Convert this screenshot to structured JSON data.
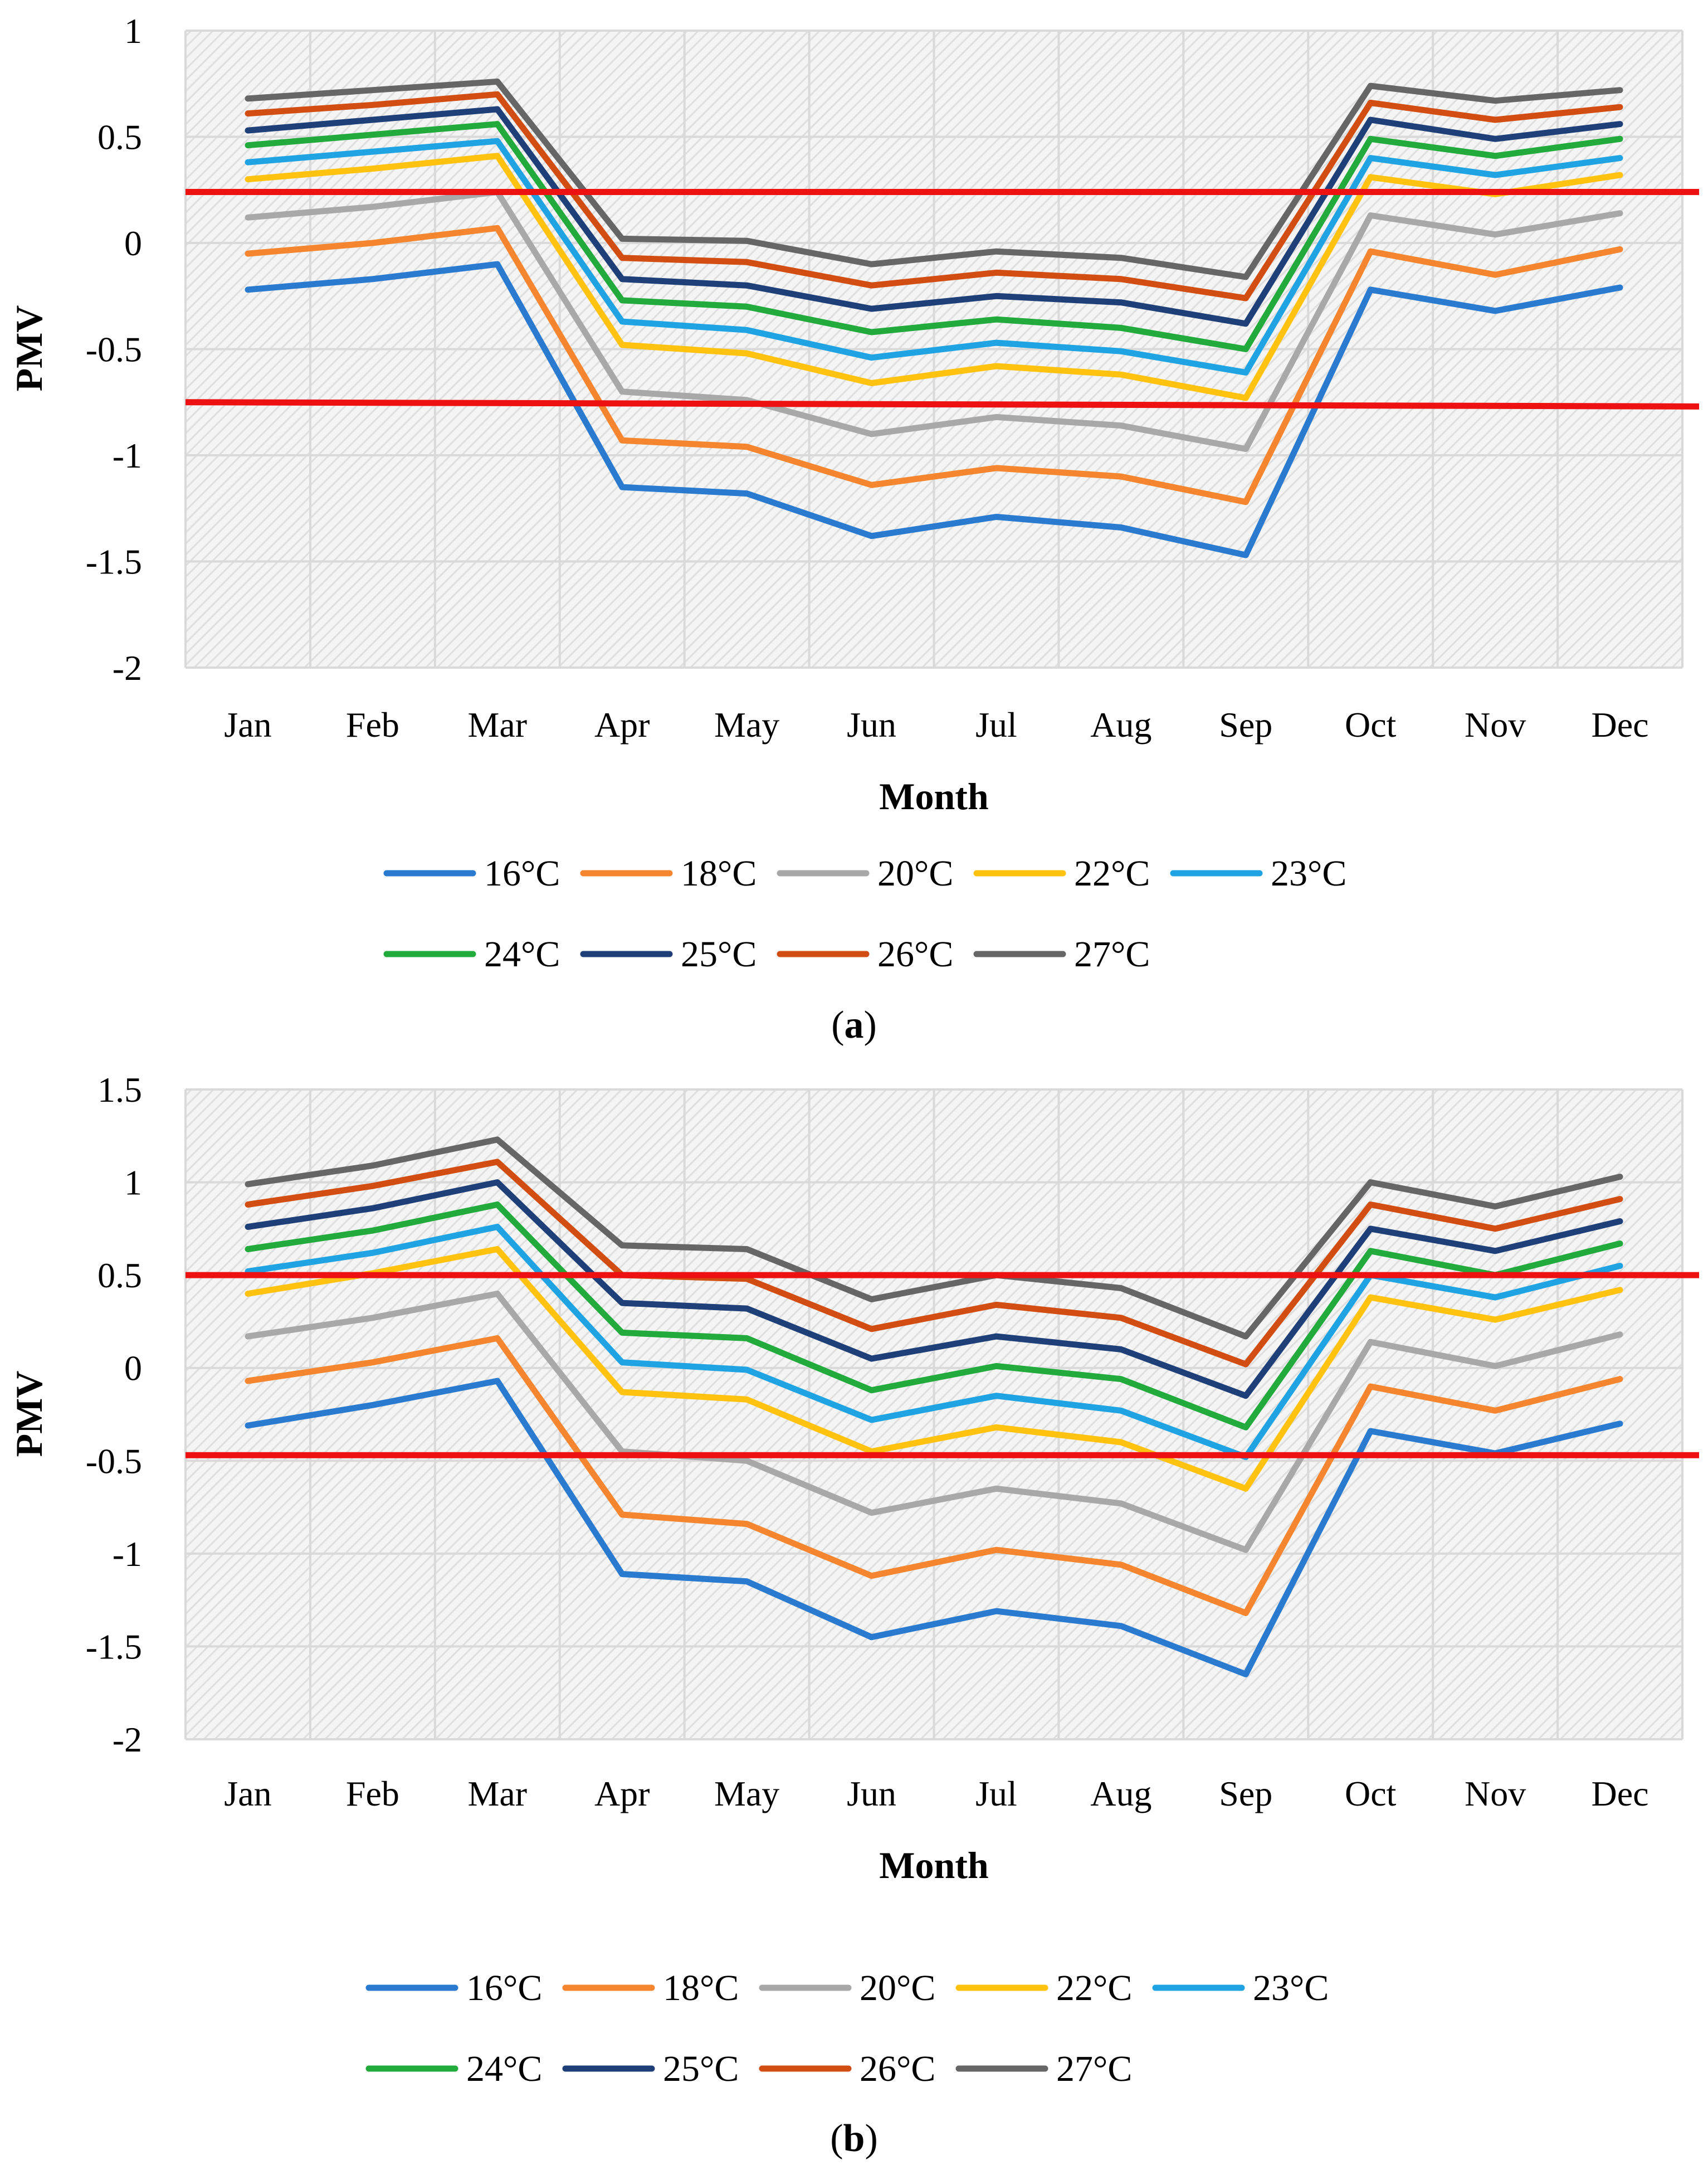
{
  "colors": {
    "16°C": "#2a7ad0",
    "18°C": "#f5862f",
    "20°C": "#a8a8a8",
    "22°C": "#ffc20e",
    "23°C": "#1fa3e3",
    "24°C": "#22aa3c",
    "25°C": "#1f3f78",
    "26°C": "#d24d12",
    "27°C": "#666666",
    "threshold": "#ee1111",
    "grid": "#d9d9d9",
    "plot_bg": "#f2f2f2"
  },
  "chart_data": [
    {
      "type": "line",
      "panel": "a",
      "caption": {
        "open": "(",
        "letter": "a",
        "close": ")"
      },
      "xlabel": "Month",
      "ylabel": "PMV",
      "ylim": [
        -2,
        1
      ],
      "yticks": [
        1,
        0.5,
        0,
        -0.5,
        -1,
        -1.5,
        -2
      ],
      "ytick_labels": [
        "1",
        "0.5",
        "0",
        "-0.5",
        "-1",
        "-1.5",
        "-2"
      ],
      "categories": [
        "Jan",
        "Feb",
        "Mar",
        "Apr",
        "May",
        "Jun",
        "Jul",
        "Aug",
        "Sep",
        "Oct",
        "Nov",
        "Dec"
      ],
      "thresholds": [
        {
          "from": 0.24,
          "to": 0.24
        },
        {
          "from": -0.75,
          "to": -0.77
        }
      ],
      "series": [
        {
          "name": "16°C",
          "values": [
            -0.22,
            -0.17,
            -0.1,
            -1.15,
            -1.18,
            -1.38,
            -1.29,
            -1.34,
            -1.47,
            -0.22,
            -0.32,
            -0.21
          ]
        },
        {
          "name": "18°C",
          "values": [
            -0.05,
            0.0,
            0.07,
            -0.93,
            -0.96,
            -1.14,
            -1.06,
            -1.1,
            -1.22,
            -0.04,
            -0.15,
            -0.03
          ]
        },
        {
          "name": "20°C",
          "values": [
            0.12,
            0.17,
            0.24,
            -0.7,
            -0.74,
            -0.9,
            -0.82,
            -0.86,
            -0.97,
            0.13,
            0.04,
            0.14
          ]
        },
        {
          "name": "22°C",
          "values": [
            0.3,
            0.35,
            0.41,
            -0.48,
            -0.52,
            -0.66,
            -0.58,
            -0.62,
            -0.73,
            0.31,
            0.23,
            0.32
          ]
        },
        {
          "name": "23°C",
          "values": [
            0.38,
            0.43,
            0.48,
            -0.37,
            -0.41,
            -0.54,
            -0.47,
            -0.51,
            -0.61,
            0.4,
            0.32,
            0.4
          ]
        },
        {
          "name": "24°C",
          "values": [
            0.46,
            0.51,
            0.56,
            -0.27,
            -0.3,
            -0.42,
            -0.36,
            -0.4,
            -0.5,
            0.49,
            0.41,
            0.49
          ]
        },
        {
          "name": "25°C",
          "values": [
            0.53,
            0.58,
            0.63,
            -0.17,
            -0.2,
            -0.31,
            -0.25,
            -0.28,
            -0.38,
            0.58,
            0.49,
            0.56
          ]
        },
        {
          "name": "26°C",
          "values": [
            0.61,
            0.65,
            0.7,
            -0.07,
            -0.09,
            -0.2,
            -0.14,
            -0.17,
            -0.26,
            0.66,
            0.58,
            0.64
          ]
        },
        {
          "name": "27°C",
          "values": [
            0.68,
            0.72,
            0.76,
            0.02,
            0.01,
            -0.1,
            -0.04,
            -0.07,
            -0.16,
            0.74,
            0.67,
            0.72
          ]
        }
      ]
    },
    {
      "type": "line",
      "panel": "b",
      "caption": {
        "open": "(",
        "letter": "b",
        "close": ")"
      },
      "xlabel": "Month",
      "ylabel": "PMV",
      "ylim": [
        -2,
        1.5
      ],
      "yticks": [
        1.5,
        1,
        0.5,
        0,
        -0.5,
        -1,
        -1.5,
        -2
      ],
      "ytick_labels": [
        "1.5",
        "1",
        "0.5",
        "0",
        "-0.5",
        "-1",
        "-1.5",
        "-2"
      ],
      "categories": [
        "Jan",
        "Feb",
        "Mar",
        "Apr",
        "May",
        "Jun",
        "Jul",
        "Aug",
        "Sep",
        "Oct",
        "Nov",
        "Dec"
      ],
      "thresholds": [
        {
          "from": 0.5,
          "to": 0.5
        },
        {
          "from": -0.47,
          "to": -0.47
        }
      ],
      "series": [
        {
          "name": "16°C",
          "values": [
            -0.31,
            -0.2,
            -0.07,
            -1.11,
            -1.15,
            -1.45,
            -1.31,
            -1.39,
            -1.65,
            -0.34,
            -0.46,
            -0.3
          ]
        },
        {
          "name": "18°C",
          "values": [
            -0.07,
            0.03,
            0.16,
            -0.79,
            -0.84,
            -1.12,
            -0.98,
            -1.06,
            -1.32,
            -0.1,
            -0.23,
            -0.06
          ]
        },
        {
          "name": "20°C",
          "values": [
            0.17,
            0.27,
            0.4,
            -0.45,
            -0.5,
            -0.78,
            -0.65,
            -0.73,
            -0.98,
            0.14,
            0.01,
            0.18
          ]
        },
        {
          "name": "22°C",
          "values": [
            0.4,
            0.51,
            0.64,
            -0.13,
            -0.17,
            -0.45,
            -0.32,
            -0.4,
            -0.65,
            0.38,
            0.26,
            0.42
          ]
        },
        {
          "name": "23°C",
          "values": [
            0.52,
            0.62,
            0.76,
            0.03,
            -0.01,
            -0.28,
            -0.15,
            -0.23,
            -0.48,
            0.5,
            0.38,
            0.55
          ]
        },
        {
          "name": "24°C",
          "values": [
            0.64,
            0.74,
            0.88,
            0.19,
            0.16,
            -0.12,
            0.01,
            -0.06,
            -0.32,
            0.63,
            0.5,
            0.67
          ]
        },
        {
          "name": "25°C",
          "values": [
            0.76,
            0.86,
            1.0,
            0.35,
            0.32,
            0.05,
            0.17,
            0.1,
            -0.15,
            0.75,
            0.63,
            0.79
          ]
        },
        {
          "name": "26°C",
          "values": [
            0.88,
            0.98,
            1.11,
            0.5,
            0.48,
            0.21,
            0.34,
            0.27,
            0.02,
            0.88,
            0.75,
            0.91
          ]
        },
        {
          "name": "27°C",
          "values": [
            0.99,
            1.09,
            1.23,
            0.66,
            0.64,
            0.37,
            0.5,
            0.43,
            0.17,
            1.0,
            0.87,
            1.03
          ]
        }
      ]
    }
  ]
}
